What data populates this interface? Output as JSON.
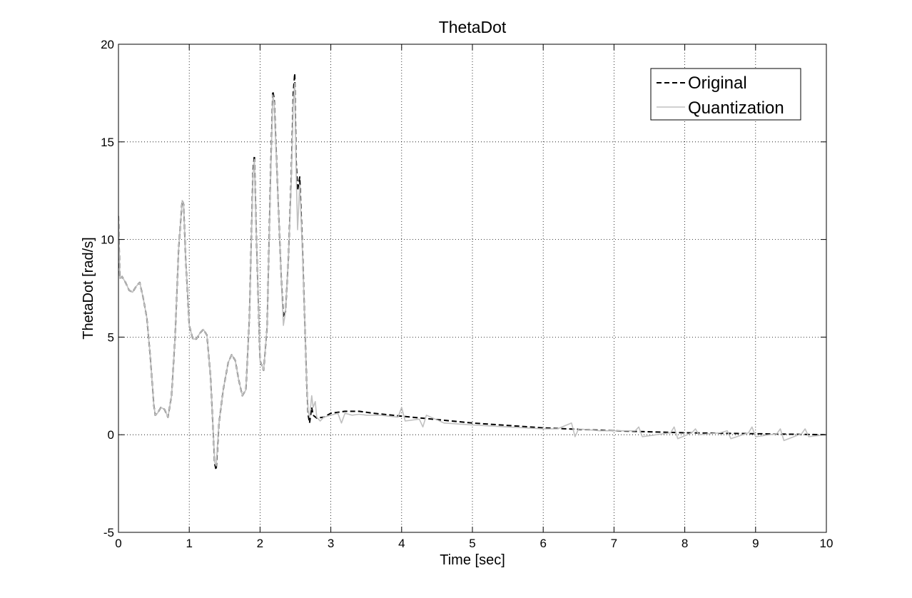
{
  "chart_data": {
    "type": "line",
    "title": "ThetaDot",
    "xlabel": "Time [sec]",
    "ylabel": "ThetaDot [rad/s]",
    "xlim": [
      0,
      10
    ],
    "ylim": [
      -5,
      20
    ],
    "xticks": [
      0,
      1,
      2,
      3,
      4,
      5,
      6,
      7,
      8,
      9,
      10
    ],
    "yticks": [
      -5,
      0,
      5,
      10,
      15,
      20
    ],
    "grid": true,
    "legend_position": "top-right",
    "colors": {
      "original": "#000000",
      "quantization": "#c0c0c0"
    },
    "series": [
      {
        "name": "Original",
        "style": "dashed",
        "x": [
          0,
          0.02,
          0.05,
          0.1,
          0.15,
          0.2,
          0.25,
          0.3,
          0.35,
          0.4,
          0.45,
          0.5,
          0.52,
          0.55,
          0.6,
          0.65,
          0.7,
          0.75,
          0.8,
          0.85,
          0.9,
          0.92,
          0.95,
          1.0,
          1.05,
          1.1,
          1.15,
          1.2,
          1.25,
          1.3,
          1.33,
          1.36,
          1.38,
          1.42,
          1.48,
          1.55,
          1.6,
          1.65,
          1.7,
          1.75,
          1.8,
          1.85,
          1.9,
          1.92,
          1.95,
          2.0,
          2.05,
          2.1,
          2.15,
          2.18,
          2.2,
          2.25,
          2.3,
          2.33,
          2.36,
          2.4,
          2.44,
          2.47,
          2.49,
          2.51,
          2.53,
          2.56,
          2.6,
          2.63,
          2.66,
          2.68,
          2.7,
          2.73,
          2.75,
          2.8,
          2.9,
          3.0,
          3.2,
          3.4,
          3.6,
          4.0,
          5.0,
          6.0,
          7.0,
          8.0,
          9.0,
          10.0
        ],
        "values": [
          11.2,
          8.0,
          8.1,
          7.8,
          7.4,
          7.3,
          7.6,
          7.8,
          7.0,
          6.0,
          4.0,
          1.5,
          1.0,
          1.1,
          1.4,
          1.3,
          0.9,
          2.0,
          5.0,
          9.5,
          12.0,
          11.8,
          9.0,
          5.6,
          4.9,
          4.9,
          5.2,
          5.4,
          5.1,
          3.0,
          0.8,
          -1.5,
          -1.8,
          0.6,
          2.3,
          3.7,
          4.1,
          3.8,
          2.8,
          2.0,
          2.3,
          6.0,
          13.5,
          14.3,
          10.0,
          3.8,
          3.3,
          5.5,
          13.5,
          17.6,
          17.2,
          12.5,
          8.0,
          6.0,
          6.3,
          9.0,
          13.0,
          17.5,
          18.5,
          14.0,
          12.5,
          13.2,
          9.5,
          6.0,
          2.5,
          1.0,
          0.6,
          1.4,
          1.0,
          0.85,
          0.9,
          1.1,
          1.2,
          1.2,
          1.1,
          0.95,
          0.6,
          0.35,
          0.2,
          0.1,
          0.05,
          0.0
        ]
      },
      {
        "name": "Quantization",
        "style": "solid",
        "x": [
          0,
          0.02,
          0.05,
          0.1,
          0.15,
          0.2,
          0.25,
          0.3,
          0.35,
          0.4,
          0.45,
          0.5,
          0.52,
          0.55,
          0.6,
          0.65,
          0.7,
          0.75,
          0.8,
          0.85,
          0.9,
          0.92,
          0.95,
          1.0,
          1.05,
          1.1,
          1.15,
          1.2,
          1.25,
          1.3,
          1.33,
          1.36,
          1.38,
          1.42,
          1.48,
          1.55,
          1.6,
          1.65,
          1.7,
          1.75,
          1.8,
          1.85,
          1.9,
          1.92,
          1.95,
          2.0,
          2.05,
          2.1,
          2.15,
          2.18,
          2.2,
          2.25,
          2.3,
          2.33,
          2.36,
          2.4,
          2.44,
          2.47,
          2.49,
          2.51,
          2.53,
          2.56,
          2.6,
          2.63,
          2.66,
          2.68,
          2.7,
          2.73,
          2.75,
          2.78,
          2.8,
          2.85,
          2.9,
          3.0,
          3.1,
          3.15,
          3.2,
          3.3,
          3.4,
          3.5,
          3.7,
          3.95,
          4.0,
          4.05,
          4.25,
          4.3,
          4.35,
          4.6,
          5.0,
          5.5,
          6.0,
          6.2,
          6.4,
          6.45,
          6.5,
          6.8,
          7.0,
          7.3,
          7.35,
          7.4,
          7.8,
          7.85,
          7.9,
          8.1,
          8.15,
          8.2,
          8.5,
          8.6,
          8.65,
          8.9,
          8.95,
          9.0,
          9.3,
          9.35,
          9.4,
          9.65,
          9.7,
          9.75,
          10.0
        ],
        "values": [
          11.2,
          8.0,
          8.1,
          7.8,
          7.4,
          7.3,
          7.6,
          7.8,
          7.0,
          6.0,
          4.0,
          1.5,
          1.0,
          1.1,
          1.4,
          1.3,
          0.9,
          2.0,
          5.0,
          9.5,
          12.0,
          11.8,
          9.0,
          5.6,
          4.9,
          4.9,
          5.2,
          5.4,
          5.1,
          3.0,
          0.8,
          -1.4,
          -1.6,
          0.6,
          2.3,
          3.7,
          4.1,
          3.8,
          2.8,
          2.0,
          2.3,
          6.0,
          13.3,
          14.1,
          10.0,
          3.8,
          3.3,
          5.5,
          13.3,
          17.4,
          17.0,
          12.5,
          8.0,
          5.6,
          6.3,
          9.0,
          12.8,
          17.0,
          18.0,
          13.5,
          10.5,
          12.8,
          9.3,
          6.0,
          2.5,
          1.2,
          0.9,
          2.0,
          1.4,
          1.7,
          0.9,
          0.7,
          0.9,
          1.0,
          1.1,
          0.6,
          1.1,
          1.0,
          1.05,
          1.0,
          1.0,
          0.9,
          1.4,
          0.7,
          0.8,
          0.4,
          1.0,
          0.6,
          0.5,
          0.4,
          0.3,
          0.3,
          0.6,
          -0.1,
          0.3,
          0.2,
          0.2,
          0.2,
          0.4,
          -0.1,
          0.1,
          0.4,
          -0.2,
          0.1,
          0.3,
          0.0,
          0.1,
          0.2,
          -0.2,
          0.1,
          0.4,
          -0.1,
          0.05,
          0.3,
          -0.3,
          0.05,
          0.3,
          -0.1,
          0.0
        ]
      }
    ]
  }
}
